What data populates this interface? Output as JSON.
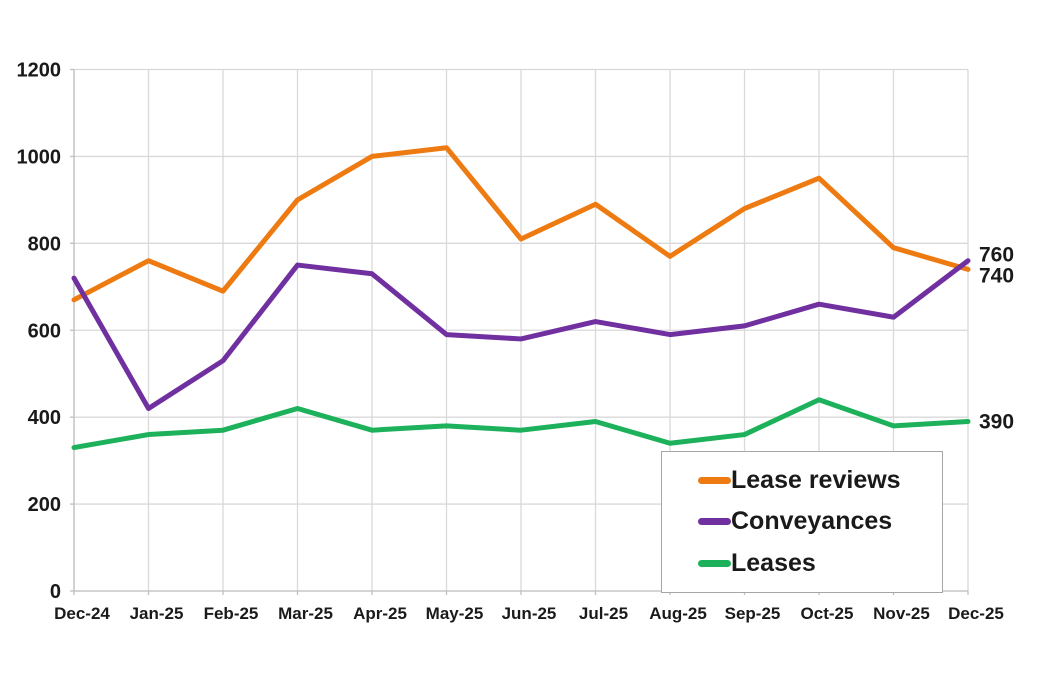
{
  "chart_data": {
    "type": "line",
    "title": "",
    "xlabel": "",
    "ylabel": "",
    "categories": [
      "Dec-24",
      "Jan-25",
      "Feb-25",
      "Mar-25",
      "Apr-25",
      "May-25",
      "Jun-25",
      "Jul-25",
      "Aug-25",
      "Sep-25",
      "Oct-25",
      "Nov-25",
      "Dec-25"
    ],
    "series": [
      {
        "name": "Lease reviews",
        "color": "#EE7B12",
        "values": [
          670,
          760,
          690,
          900,
          1000,
          1020,
          810,
          890,
          770,
          880,
          950,
          790,
          740
        ],
        "end_label": "740"
      },
      {
        "name": "Conveyances",
        "color": "#7030A0",
        "values": [
          720,
          420,
          530,
          750,
          730,
          590,
          580,
          620,
          590,
          610,
          660,
          630,
          760
        ],
        "end_label": "760"
      },
      {
        "name": "Leases",
        "color": "#1CB15A",
        "values": [
          330,
          360,
          370,
          420,
          370,
          380,
          370,
          390,
          340,
          360,
          440,
          380,
          390
        ],
        "end_label": "390"
      }
    ],
    "ylim": [
      0,
      1200
    ],
    "ytick_step": 200,
    "ytick_labels": [
      "0",
      "200",
      "400",
      "600",
      "800",
      "1000",
      "1200"
    ],
    "grid": "both",
    "legend_position": "inside-bottom-right"
  },
  "legend": {
    "items": [
      {
        "label": "Lease reviews"
      },
      {
        "label": "Conveyances"
      },
      {
        "label": "Leases"
      }
    ]
  },
  "colors": {
    "background": "#FFFFFF",
    "gridline": "#D9D9D9",
    "axis": "#BFBFBF",
    "text": "#1A1A1A",
    "legend_border": "#A6A6A6"
  }
}
